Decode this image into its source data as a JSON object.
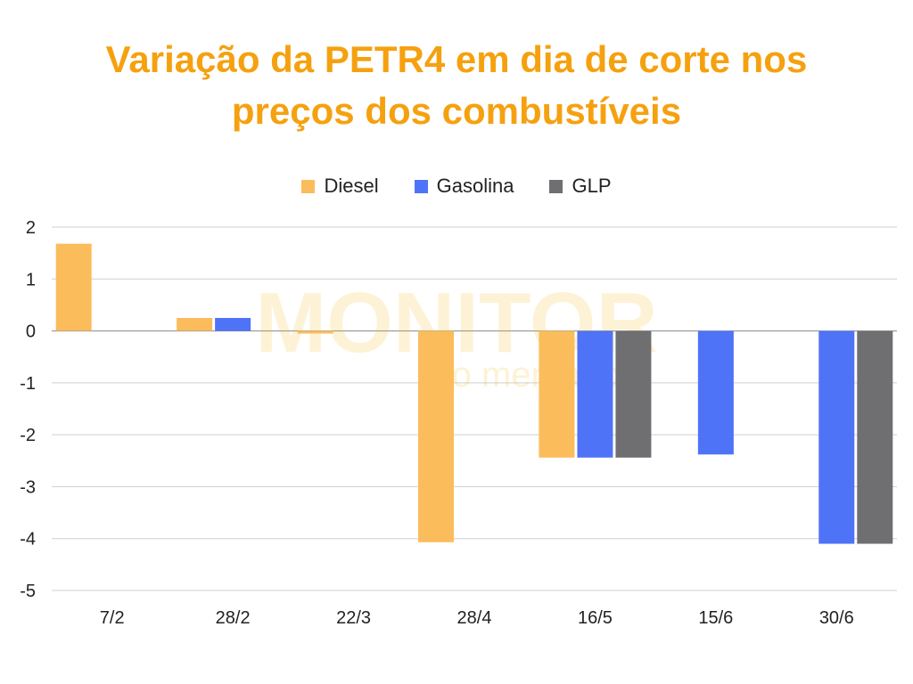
{
  "chart_data": {
    "type": "bar",
    "title_lines": [
      "Variação da PETR4 em dia de corte nos",
      "preços dos combustíveis"
    ],
    "xlabel": "",
    "ylabel": "",
    "categories": [
      "7/2",
      "28/2",
      "22/3",
      "28/4",
      "16/5",
      "15/6",
      "30/6"
    ],
    "series": [
      {
        "name": "Diesel",
        "color": "#fbbc5b",
        "values": [
          1.68,
          0.25,
          -0.05,
          -4.07,
          -2.44,
          null,
          null
        ]
      },
      {
        "name": "Gasolina",
        "color": "#4f73f7",
        "values": [
          null,
          0.25,
          null,
          null,
          -2.44,
          -2.38,
          -4.1
        ]
      },
      {
        "name": "GLP",
        "color": "#6f6e71",
        "values": [
          null,
          null,
          null,
          null,
          -2.44,
          null,
          -4.1
        ]
      }
    ],
    "ylim": [
      -5,
      2
    ],
    "yticks": [
      "2",
      "1",
      "0",
      "-1",
      "-2",
      "-3",
      "-4",
      "-5"
    ],
    "grid": true,
    "legend_position": "top-center"
  },
  "watermark": {
    "line1": "MONITOR",
    "line2": "do mercado"
  }
}
